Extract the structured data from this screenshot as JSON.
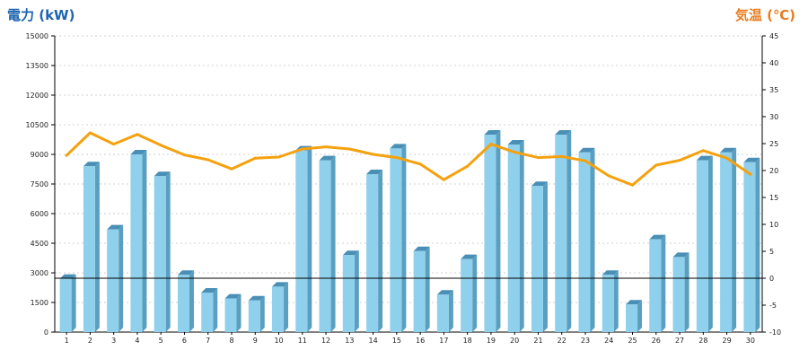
{
  "chart_data": {
    "type": "bar",
    "title_left": "電力 (kW)",
    "title_right": "気温 (℃)",
    "categories": [
      "1",
      "2",
      "3",
      "4",
      "5",
      "6",
      "7",
      "8",
      "9",
      "10",
      "11",
      "12",
      "13",
      "14",
      "15",
      "16",
      "17",
      "18",
      "19",
      "20",
      "21",
      "22",
      "23",
      "24",
      "25",
      "26",
      "27",
      "28",
      "29",
      "30"
    ],
    "y_left": {
      "label": "電力 (kW)",
      "range": [
        0,
        15000
      ],
      "ticks": [
        0,
        1500,
        3000,
        4500,
        6000,
        7500,
        9000,
        10500,
        12000,
        13500,
        15000
      ]
    },
    "y_right": {
      "label": "気温 (℃)",
      "range": [
        -10,
        45
      ],
      "ticks": [
        -10,
        -5,
        0,
        5,
        10,
        15,
        20,
        25,
        30,
        35,
        40,
        45
      ]
    },
    "grid": true,
    "series": [
      {
        "axis": "left",
        "type": "bar",
        "values": [
          2700,
          8400,
          5200,
          9000,
          7900,
          2900,
          2000,
          1700,
          1600,
          2300,
          9200,
          8700,
          3900,
          8000,
          9300,
          4100,
          1900,
          3700,
          10000,
          9500,
          7400,
          10000,
          9100,
          2900,
          1400,
          4700,
          3800,
          8700,
          9100,
          8600
        ]
      },
      {
        "axis": "right",
        "type": "line",
        "values": [
          22.8,
          27.0,
          24.9,
          26.7,
          24.7,
          22.9,
          22.0,
          20.3,
          22.3,
          22.5,
          24.0,
          24.4,
          24.0,
          23.0,
          22.4,
          21.2,
          18.3,
          20.8,
          24.9,
          23.4,
          22.4,
          22.6,
          21.8,
          19.0,
          17.3,
          21.0,
          21.9,
          23.7,
          22.3,
          19.3
        ]
      }
    ],
    "colors": {
      "bar_front": "#8fd0ec",
      "bar_side": "#5b9fc0",
      "bar_top": "#4a8fb5",
      "line": "#f5a10f",
      "left_title": "#1e64b0",
      "right_title": "#e87d1e",
      "grid": "#c4c4c4",
      "baseline": "#000000"
    }
  }
}
